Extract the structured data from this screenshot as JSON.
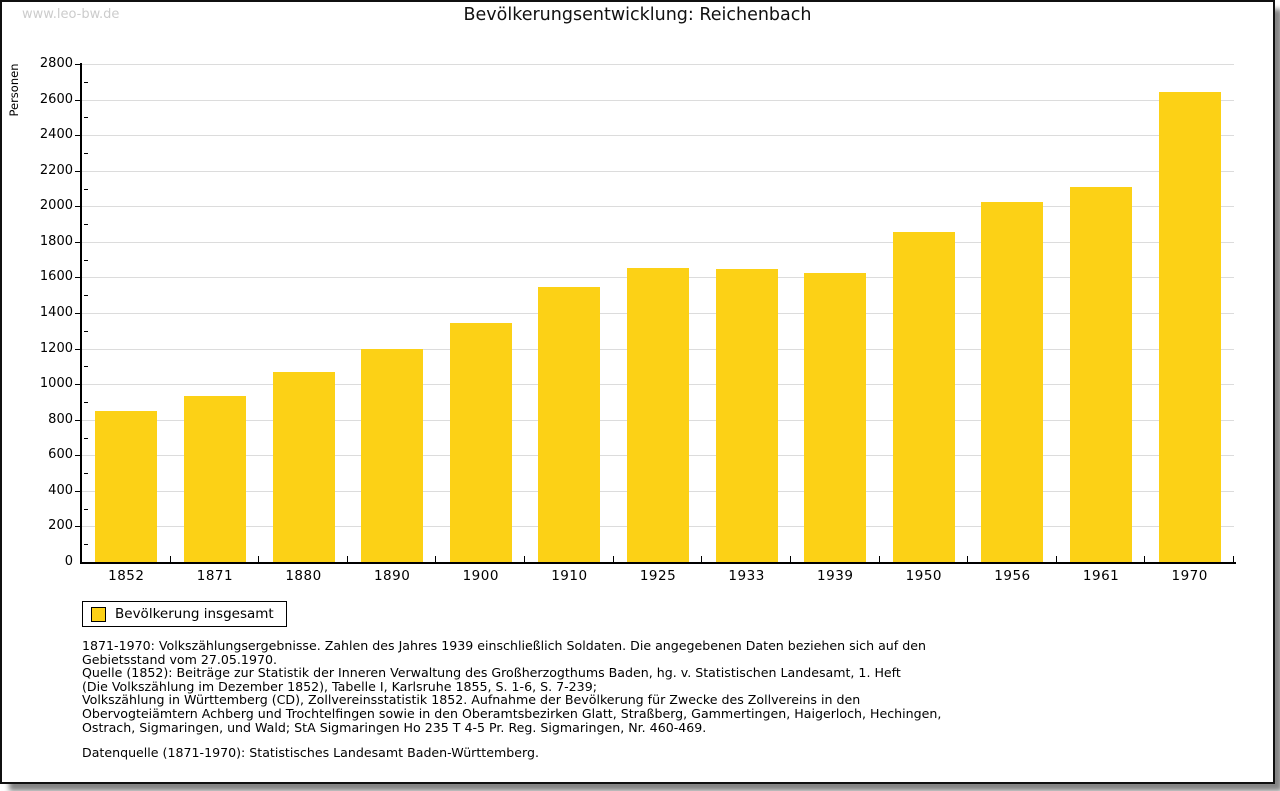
{
  "page": {
    "watermark": "www.leo-bw.de",
    "title": "Bevölkerungsentwicklung: Reichenbach"
  },
  "chart_data": {
    "type": "bar",
    "title": "Bevölkerungsentwicklung: Reichenbach",
    "xlabel": "",
    "ylabel": "Personen",
    "categories": [
      "1852",
      "1871",
      "1880",
      "1890",
      "1900",
      "1910",
      "1925",
      "1933",
      "1939",
      "1950",
      "1956",
      "1961",
      "1970"
    ],
    "values": [
      850,
      935,
      1070,
      1200,
      1345,
      1545,
      1655,
      1645,
      1625,
      1855,
      2025,
      2110,
      2640
    ],
    "ylim": [
      0,
      2800
    ],
    "y_major_step": 200,
    "y_minor_step": 100,
    "grid": true,
    "bar_color": "#fcd116",
    "legend_label": "Bevölkerung insgesamt",
    "legend_position": "bottom-left"
  },
  "footer": {
    "lines": [
      "1871-1970: Volkszählungsergebnisse. Zahlen des Jahres 1939 einschließlich Soldaten. Die angegebenen Daten beziehen sich auf den",
      "Gebietsstand vom 27.05.1970.",
      "Quelle (1852): Beiträge zur Statistik der Inneren Verwaltung des Großherzogthums Baden, hg. v. Statistischen Landesamt, 1. Heft",
      "(Die Volkszählung im Dezember 1852), Tabelle I, Karlsruhe 1855, S. 1-6, S. 7-239;",
      "Volkszählung in Württemberg (CD), Zollvereinsstatistik 1852. Aufnahme der Bevölkerung für Zwecke des Zollvereins in den",
      "Obervogteiämtern Achberg und Trochtelfingen sowie in den Oberamtsbezirken Glatt, Straßberg, Gammertingen, Haigerloch, Hechingen,",
      "Ostrach, Sigmaringen, und Wald; StA Sigmaringen Ho 235 T 4-5 Pr. Reg. Sigmaringen, Nr. 460-469."
    ],
    "datasource": "Datenquelle (1871-1970): Statistisches Landesamt Baden-Württemberg."
  },
  "colors": {
    "bar": "#fcd116",
    "gridline": "#dcdcdc",
    "axis": "#000000",
    "watermark": "#cccccc",
    "shadow": "#6e6e6e"
  }
}
